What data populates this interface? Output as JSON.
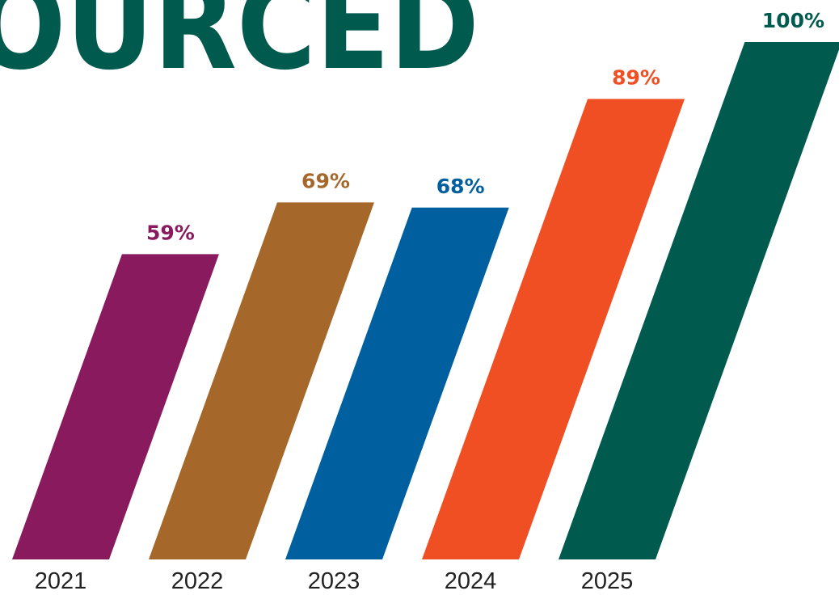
{
  "chart_data": {
    "type": "bar",
    "title": "OURCED",
    "categories": [
      "2021",
      "2022",
      "2023",
      "2024",
      "2025"
    ],
    "values": [
      59,
      69,
      68,
      89,
      100
    ],
    "value_labels": [
      "59%",
      "69%",
      "68%",
      "89%",
      "100%"
    ],
    "colors": [
      "#8a1a5e",
      "#a5682a",
      "#005f9e",
      "#f04e23",
      "#005a4e"
    ],
    "ylim": [
      0,
      100
    ]
  }
}
